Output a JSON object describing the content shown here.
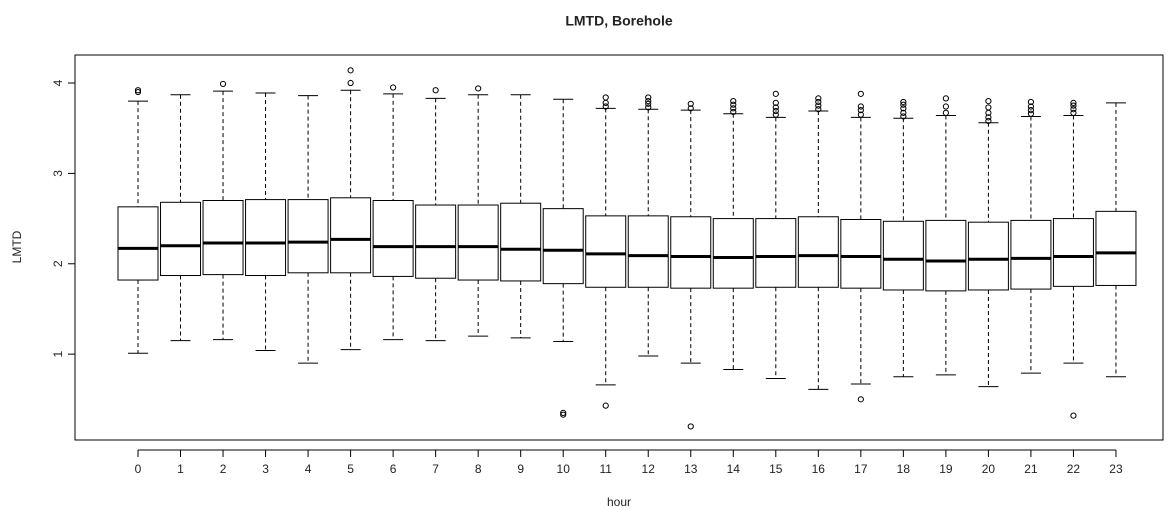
{
  "chart_data": {
    "type": "boxplot",
    "title": "LMTD, Borehole",
    "x_label": "hour",
    "y_label": "LMTD",
    "categories": [
      "0",
      "1",
      "2",
      "3",
      "4",
      "5",
      "6",
      "7",
      "8",
      "9",
      "10",
      "11",
      "12",
      "13",
      "14",
      "15",
      "16",
      "17",
      "18",
      "19",
      "20",
      "21",
      "22",
      "23"
    ],
    "low": [
      1.01,
      1.15,
      1.16,
      1.04,
      0.9,
      1.05,
      1.16,
      1.15,
      1.2,
      1.18,
      1.14,
      0.66,
      0.98,
      0.9,
      0.83,
      0.73,
      0.61,
      0.67,
      0.75,
      0.77,
      0.64,
      0.79,
      0.9,
      0.75
    ],
    "q1": [
      1.82,
      1.87,
      1.88,
      1.87,
      1.9,
      1.9,
      1.86,
      1.84,
      1.82,
      1.81,
      1.78,
      1.74,
      1.74,
      1.73,
      1.73,
      1.74,
      1.74,
      1.73,
      1.71,
      1.7,
      1.71,
      1.72,
      1.75,
      1.76
    ],
    "median": [
      2.17,
      2.2,
      2.23,
      2.23,
      2.24,
      2.27,
      2.19,
      2.19,
      2.19,
      2.16,
      2.15,
      2.11,
      2.09,
      2.08,
      2.07,
      2.08,
      2.09,
      2.08,
      2.05,
      2.03,
      2.05,
      2.06,
      2.08,
      2.12
    ],
    "q3": [
      2.63,
      2.68,
      2.7,
      2.71,
      2.71,
      2.73,
      2.7,
      2.65,
      2.65,
      2.67,
      2.61,
      2.53,
      2.53,
      2.52,
      2.5,
      2.5,
      2.52,
      2.49,
      2.47,
      2.48,
      2.46,
      2.48,
      2.5,
      2.58
    ],
    "high": [
      3.8,
      3.87,
      3.91,
      3.89,
      3.86,
      3.92,
      3.88,
      3.83,
      3.87,
      3.87,
      3.82,
      3.72,
      3.71,
      3.7,
      3.66,
      3.62,
      3.69,
      3.62,
      3.61,
      3.64,
      3.56,
      3.63,
      3.64,
      3.78
    ],
    "outliers": [
      [
        3.9,
        3.92
      ],
      [],
      [
        3.99
      ],
      [],
      [],
      [
        4.0,
        4.14
      ],
      [
        3.95
      ],
      [
        3.92
      ],
      [
        3.94
      ],
      [],
      [
        0.33,
        0.35
      ],
      [
        3.74,
        3.78,
        3.84,
        0.43
      ],
      [
        3.73,
        3.77,
        3.8,
        3.84
      ],
      [
        3.72,
        3.77,
        0.2
      ],
      [
        3.68,
        3.72,
        3.76,
        3.8
      ],
      [
        3.65,
        3.69,
        3.73,
        3.78,
        3.88
      ],
      [
        3.71,
        3.75,
        3.79,
        3.83
      ],
      [
        3.65,
        3.7,
        3.74,
        3.88,
        0.5
      ],
      [
        3.63,
        3.67,
        3.72,
        3.76,
        3.79
      ],
      [
        3.67,
        3.74,
        3.83
      ],
      [
        3.58,
        3.62,
        3.67,
        3.73,
        3.8
      ],
      [
        3.66,
        3.7,
        3.74,
        3.79
      ],
      [
        3.67,
        3.71,
        3.75,
        3.78,
        0.32
      ],
      []
    ],
    "color": "#000000",
    "ylim": [
      0.05,
      4.31
    ],
    "yticks": [
      1,
      2,
      3,
      4
    ]
  }
}
